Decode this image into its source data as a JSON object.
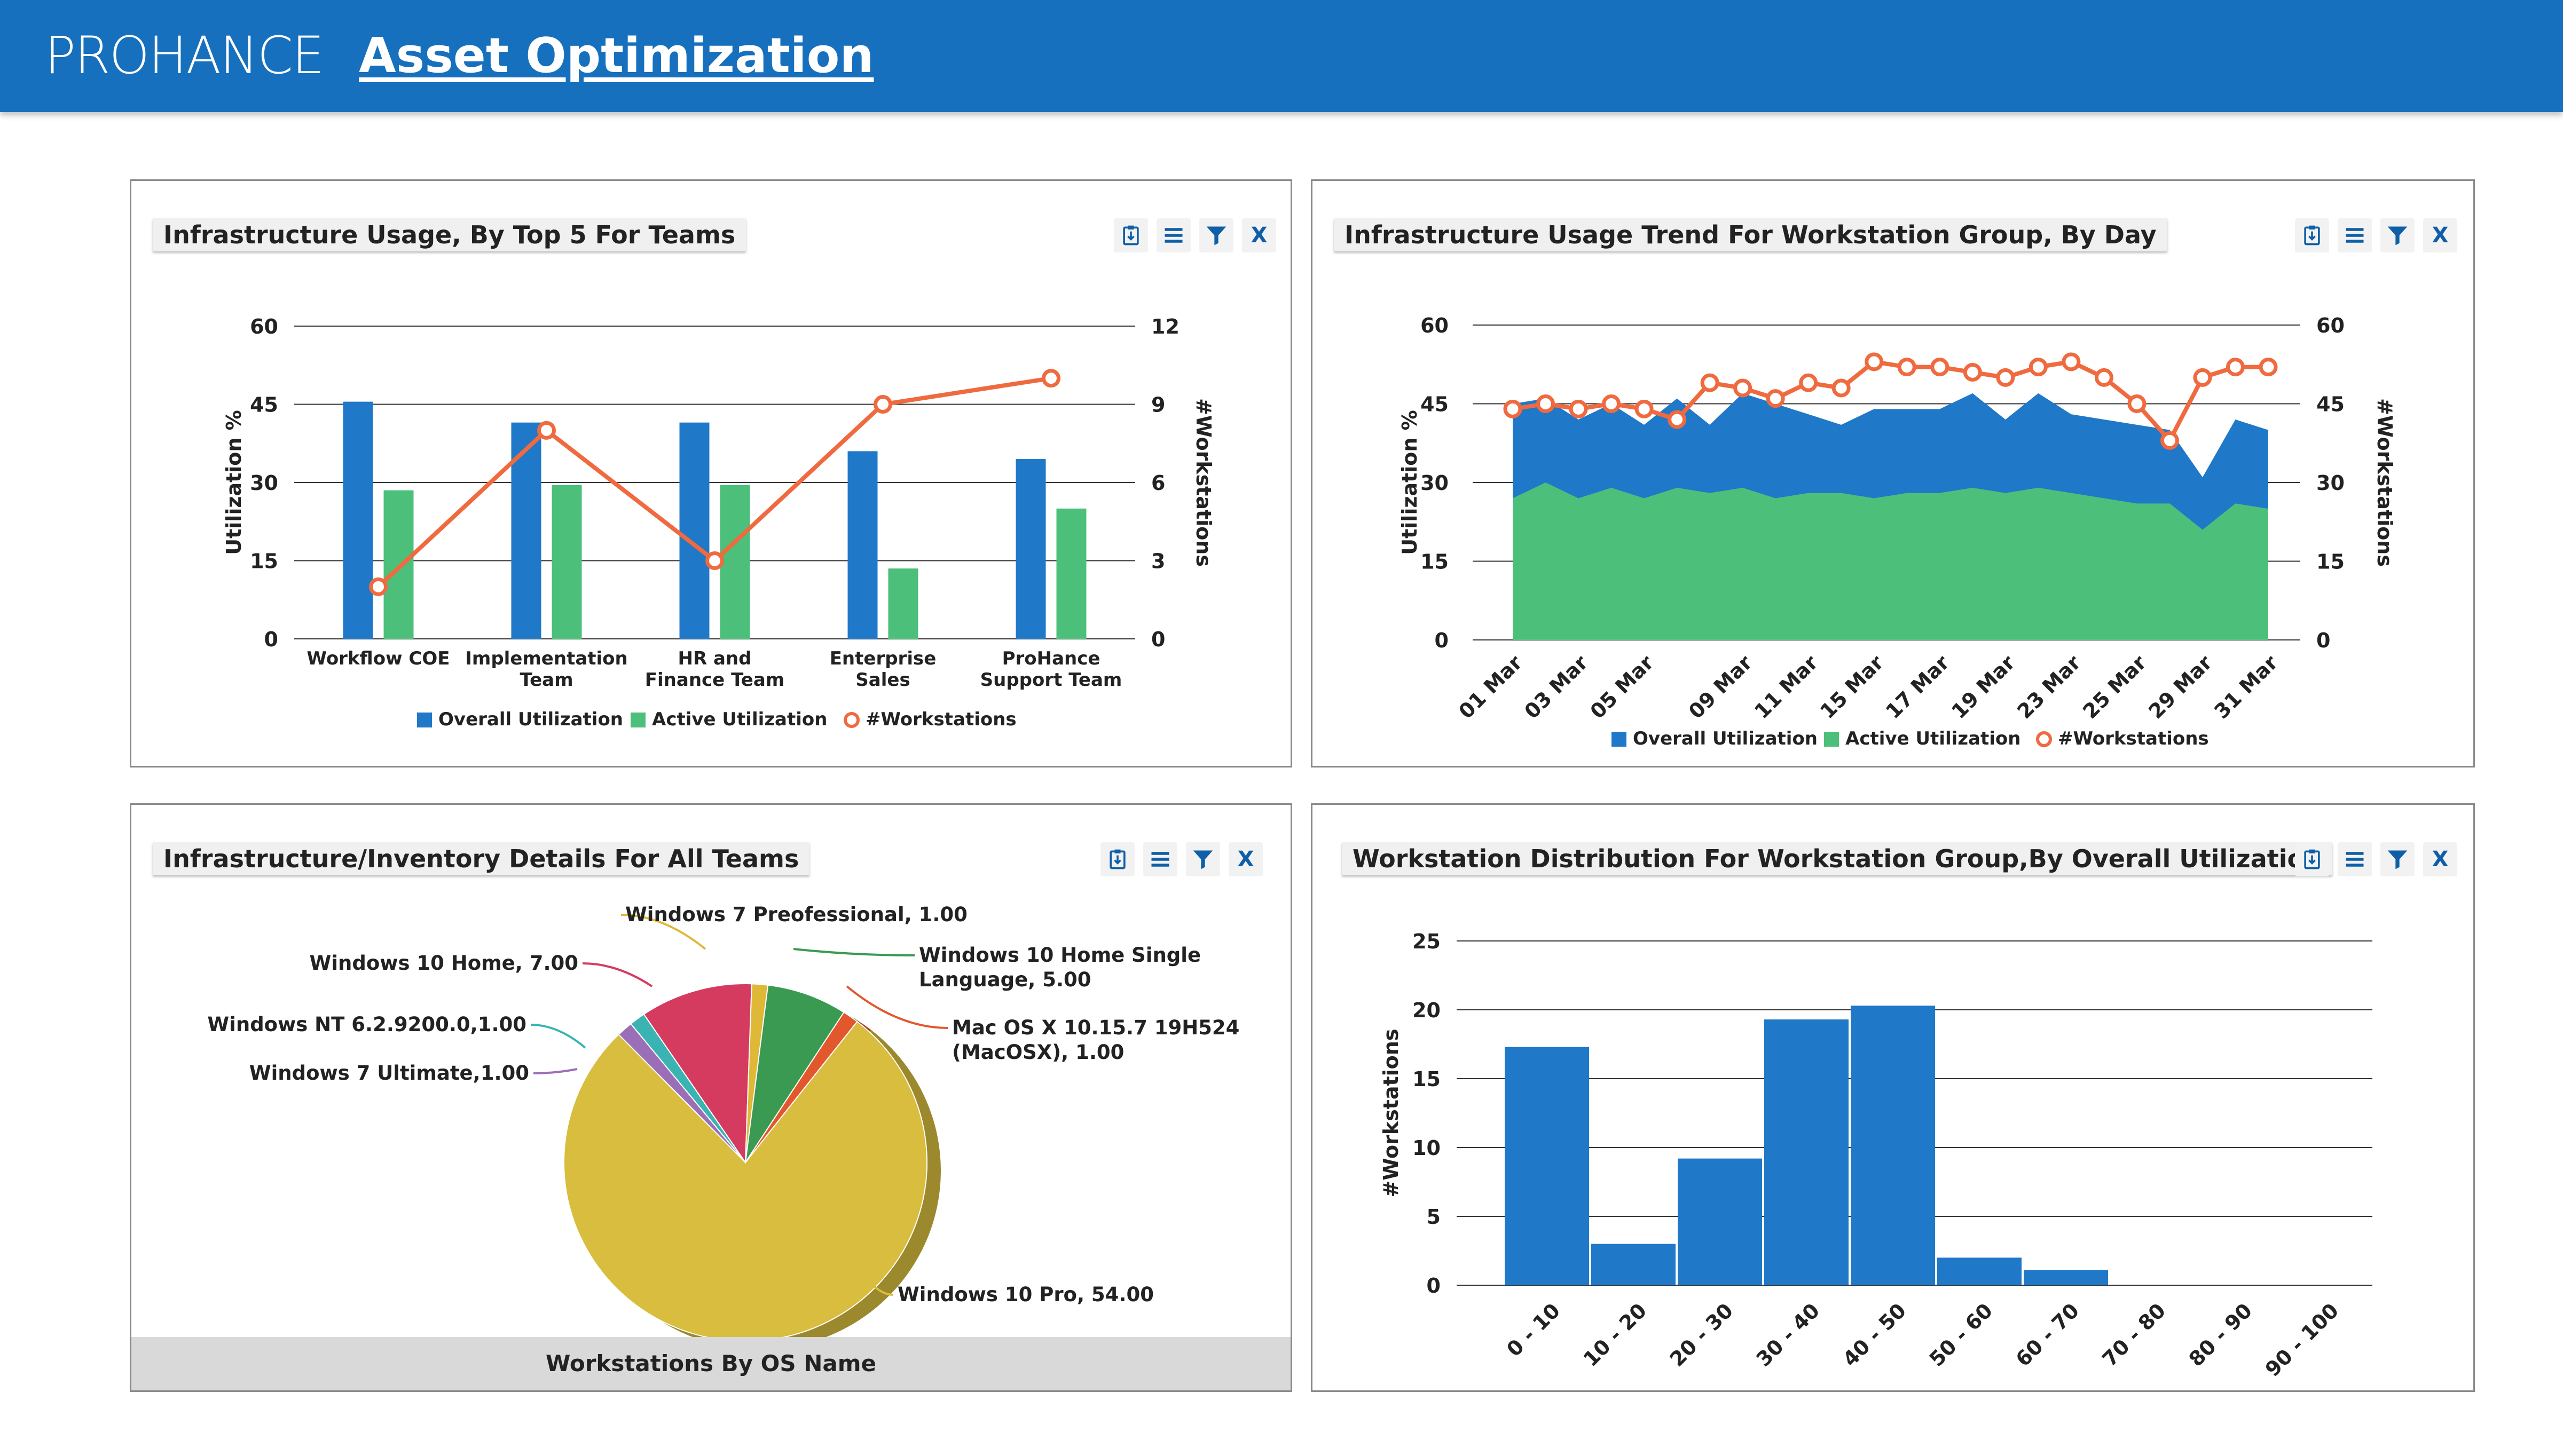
{
  "header": {
    "logo": "PROHANCE",
    "title": "Asset Optimization"
  },
  "colors": {
    "header": "#1670bd",
    "overall": "#1f78c8",
    "active": "#4cbf7a",
    "workstations": "#f06a3f"
  },
  "toolbar_icons": [
    "export-icon",
    "menu-icon",
    "filter-icon",
    "close-icon"
  ],
  "close_label": "X",
  "panels": {
    "p1": {
      "title": "Infrastructure Usage, By Top 5 For Teams"
    },
    "p2": {
      "title": "Infrastructure Usage Trend For Workstation Group, By Day"
    },
    "p3": {
      "title": "Infrastructure/Inventory Details For All Teams",
      "footer": "Workstations By OS Name"
    },
    "p4": {
      "title": "Workstation Distribution For Workstation Group,By Overall Utilization"
    }
  },
  "chart_data": [
    {
      "type": "bar",
      "categories": [
        "Workflow COE",
        "Implementation Team",
        "HR and Finance Team",
        "Enterprise Sales",
        "ProHance Support Team"
      ],
      "category_lines": [
        [
          "Workflow COE"
        ],
        [
          "Implementation",
          "Team"
        ],
        [
          "HR and",
          "Finance Team"
        ],
        [
          "Enterprise",
          "Sales"
        ],
        [
          "ProHance",
          "Support Team"
        ]
      ],
      "series": [
        {
          "name": "Overall Utilization",
          "kind": "bar",
          "axis": "left",
          "values": [
            45.5,
            41.5,
            41.5,
            36,
            34.5
          ]
        },
        {
          "name": "Active Utilization",
          "kind": "bar",
          "axis": "left",
          "values": [
            28.5,
            29.5,
            29.5,
            13.5,
            25
          ]
        },
        {
          "name": "#Workstations",
          "kind": "line",
          "axis": "right",
          "values": [
            2,
            8,
            3,
            9,
            10
          ]
        }
      ],
      "ylabel": "Utilization %",
      "ylabel_right": "#Workstations",
      "ylim": [
        0,
        60
      ],
      "yticks": [
        0,
        15,
        30,
        45,
        60
      ],
      "ylim_right": [
        0,
        12
      ],
      "yticks_right": [
        0,
        3,
        6,
        9,
        12
      ],
      "legend": "bottom"
    },
    {
      "type": "area",
      "x": [
        "01 Mar",
        "02 Mar",
        "03 Mar",
        "04 Mar",
        "05 Mar",
        "06 Mar",
        "08 Mar",
        "09 Mar",
        "10 Mar",
        "11 Mar",
        "12 Mar",
        "15 Mar",
        "16 Mar",
        "17 Mar",
        "18 Mar",
        "19 Mar",
        "22 Mar",
        "23 Mar",
        "24 Mar",
        "25 Mar",
        "26 Mar",
        "29 Mar",
        "30 Mar",
        "31 Mar"
      ],
      "xtick_labels": [
        "01 Mar",
        "03 Mar",
        "05 Mar",
        "09 Mar",
        "11 Mar",
        "15 Mar",
        "17 Mar",
        "19 Mar",
        "23 Mar",
        "25 Mar",
        "29 Mar",
        "31 Mar"
      ],
      "series": [
        {
          "name": "Overall Utilization",
          "kind": "area",
          "values": [
            45,
            46,
            42,
            45,
            41,
            46,
            41,
            47,
            45,
            43,
            41,
            44,
            44,
            44,
            47,
            42,
            47,
            43,
            42,
            41,
            40,
            31,
            42,
            40
          ]
        },
        {
          "name": "Active Utilization",
          "kind": "area",
          "values": [
            27,
            30,
            27,
            29,
            27,
            29,
            28,
            29,
            27,
            28,
            28,
            27,
            28,
            28,
            29,
            28,
            29,
            28,
            27,
            26,
            26,
            21,
            26,
            25
          ]
        },
        {
          "name": "#Workstations",
          "kind": "line",
          "values": [
            44,
            45,
            44,
            45,
            44,
            42,
            49,
            48,
            46,
            49,
            48,
            53,
            52,
            52,
            51,
            50,
            52,
            53,
            50,
            45,
            38,
            50,
            52,
            52
          ]
        }
      ],
      "ylabel": "Utilization %",
      "ylabel_right": "#Workstations",
      "ylim": [
        0,
        60
      ],
      "yticks": [
        0,
        15,
        30,
        45,
        60
      ],
      "ylim_right": [
        0,
        60
      ],
      "yticks_right": [
        0,
        15,
        30,
        45,
        60
      ],
      "legend": "bottom"
    },
    {
      "type": "pie",
      "series": [
        {
          "name": "Workstations By OS Name",
          "labels": [
            "Windows 10 Pro",
            "Windows 7 Ultimate",
            "Windows NT 6.2.9200.0",
            "Windows 10 Home",
            "Windows 7 Preofessional",
            "Windows 10 Home Single Language",
            "Mac OS X 10.15.7 19H524 (MacOSX)"
          ],
          "values": [
            54,
            1,
            1,
            7,
            1,
            5,
            1
          ],
          "colors": [
            "#d8bd3f",
            "#9b6fb8",
            "#3ab3b3",
            "#d53a5f",
            "#e0b838",
            "#3a9a52",
            "#e2572b"
          ]
        }
      ],
      "display_labels": [
        "Windows 10 Pro, 54.00",
        "Windows 7 Ultimate,1.00",
        "Windows NT 6.2.9200.0,1.00",
        "Windows 10 Home, 7.00",
        "Windows 7 Preofessional, 1.00",
        "Windows 10 Home Single Language, 5.00",
        "Mac OS X 10.15.7 19H524 (MacOSX), 1.00"
      ],
      "display_label_lines": [
        [
          "Windows 10 Pro, 54.00"
        ],
        [
          "Windows 7 Ultimate,1.00"
        ],
        [
          "Windows NT 6.2.9200.0,1.00"
        ],
        [
          "Windows 10 Home, 7.00"
        ],
        [
          "Windows 7 Preofessional, 1.00"
        ],
        [
          "Windows 10 Home Single",
          "Language, 5.00"
        ],
        [
          "Mac OS X 10.15.7 19H524",
          "(MacOSX), 1.00"
        ]
      ]
    },
    {
      "type": "bar",
      "categories": [
        "0 - 10",
        "10 - 20",
        "20 - 30",
        "30 - 40",
        "40 - 50",
        "50 - 60",
        "60 - 70",
        "70 - 80",
        "80 - 90",
        "90 - 100"
      ],
      "series": [
        {
          "name": "#Workstations",
          "values": [
            17.3,
            3,
            9.2,
            19.3,
            20.3,
            2,
            1.1,
            0,
            0,
            0
          ]
        }
      ],
      "ylabel": "#Workstations",
      "ylim": [
        0,
        25
      ],
      "yticks": [
        0,
        5,
        10,
        15,
        20,
        25
      ]
    }
  ]
}
